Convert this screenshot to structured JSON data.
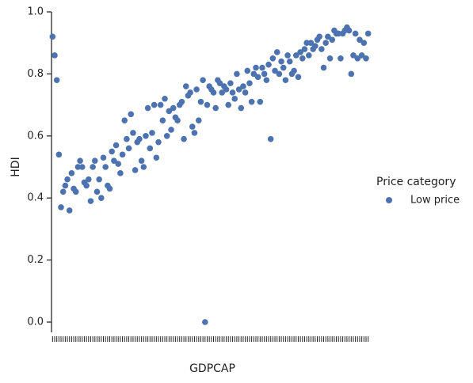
{
  "chart_data": {
    "type": "strip",
    "x_label": "GDPCAP",
    "y_label": "HDI",
    "legend_title": "Price category",
    "legend": "right",
    "categories": [
      null,
      null,
      null,
      null,
      null,
      null,
      null,
      null,
      null,
      null,
      null,
      null,
      null,
      null,
      null,
      null,
      null,
      null,
      null,
      null,
      null,
      null,
      null,
      null,
      null,
      null,
      null,
      null,
      null,
      null,
      null,
      null,
      null,
      null,
      null,
      null,
      null,
      null,
      null,
      null,
      null,
      null,
      null,
      null,
      null,
      null,
      null,
      null,
      null,
      null,
      null,
      null,
      null,
      null,
      null,
      null,
      null,
      null,
      null,
      null,
      null,
      null,
      null,
      null,
      null,
      null,
      null,
      null,
      null,
      null,
      null,
      null,
      null,
      null,
      null,
      null,
      null,
      null,
      null,
      null,
      null,
      null,
      null,
      null,
      null,
      null,
      null,
      null,
      null,
      null,
      null,
      null,
      null,
      null,
      null,
      null,
      null,
      null,
      null,
      null,
      null,
      null,
      null,
      null,
      null,
      null,
      null,
      null,
      null,
      null,
      null,
      null,
      null,
      null,
      null,
      null,
      null,
      null,
      null,
      null,
      null,
      null,
      null,
      null,
      null,
      null,
      null,
      null,
      null,
      null,
      null,
      null,
      null,
      null,
      null,
      null,
      null,
      null,
      null,
      null,
      null,
      null,
      null,
      null,
      null,
      null,
      null,
      null,
      null,
      null
    ],
    "series": [
      {
        "name": "Low price",
        "color": "#4c72b0",
        "values": [
          0.92,
          0.86,
          0.78,
          0.54,
          0.37,
          0.42,
          0.44,
          0.46,
          0.36,
          0.48,
          0.43,
          0.42,
          0.5,
          0.52,
          0.5,
          0.45,
          0.44,
          0.46,
          0.39,
          0.5,
          0.52,
          0.42,
          0.46,
          0.4,
          0.53,
          0.5,
          0.44,
          0.43,
          0.55,
          0.52,
          0.57,
          0.51,
          0.48,
          0.54,
          0.65,
          0.59,
          0.56,
          0.67,
          0.61,
          0.49,
          0.58,
          0.59,
          0.52,
          0.5,
          0.6,
          0.69,
          0.56,
          0.61,
          0.7,
          0.53,
          0.58,
          0.7,
          0.65,
          0.72,
          0.6,
          0.68,
          0.62,
          0.69,
          0.66,
          0.65,
          0.7,
          0.71,
          0.59,
          0.76,
          0.73,
          0.74,
          0.63,
          0.61,
          0.75,
          0.65,
          0.71,
          0.78,
          0.0,
          0.7,
          0.76,
          0.75,
          0.74,
          0.69,
          0.78,
          0.77,
          0.74,
          0.76,
          0.75,
          0.7,
          0.77,
          0.74,
          0.72,
          0.8,
          0.75,
          0.69,
          0.76,
          0.74,
          0.81,
          0.77,
          0.71,
          0.8,
          0.82,
          0.79,
          0.71,
          0.82,
          0.8,
          0.78,
          0.83,
          0.59,
          0.85,
          0.81,
          0.87,
          0.8,
          0.84,
          0.82,
          0.78,
          0.86,
          0.84,
          0.8,
          0.81,
          0.86,
          0.79,
          0.87,
          0.85,
          0.88,
          0.9,
          0.86,
          0.9,
          0.88,
          0.89,
          0.91,
          0.92,
          0.88,
          0.82,
          0.9,
          0.92,
          0.85,
          0.91,
          0.94,
          0.93,
          0.93,
          0.85,
          0.93,
          0.94,
          0.95,
          0.94,
          0.8,
          0.86,
          0.93,
          0.85,
          0.91,
          0.86,
          0.9,
          0.85,
          0.93
        ]
      }
    ],
    "ylim": [
      0,
      1
    ],
    "yticks": [
      {
        "value": 0,
        "label": "0.0"
      },
      {
        "value": 0.2,
        "label": "0.2"
      },
      {
        "value": 0.4,
        "label": "0.4"
      },
      {
        "value": 0.6,
        "label": "0.6"
      },
      {
        "value": 0.8,
        "label": "0.8"
      },
      {
        "value": 1,
        "label": "1.0"
      }
    ]
  }
}
